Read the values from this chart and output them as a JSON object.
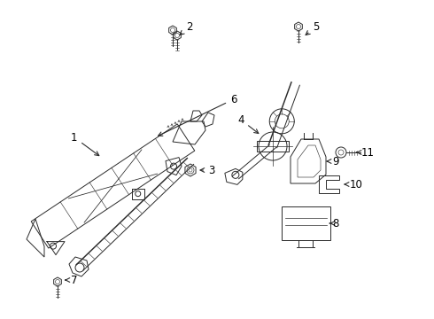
{
  "background_color": "#ffffff",
  "line_color": "#2a2a2a",
  "label_color": "#000000",
  "figsize": [
    4.9,
    3.6
  ],
  "dpi": 100
}
